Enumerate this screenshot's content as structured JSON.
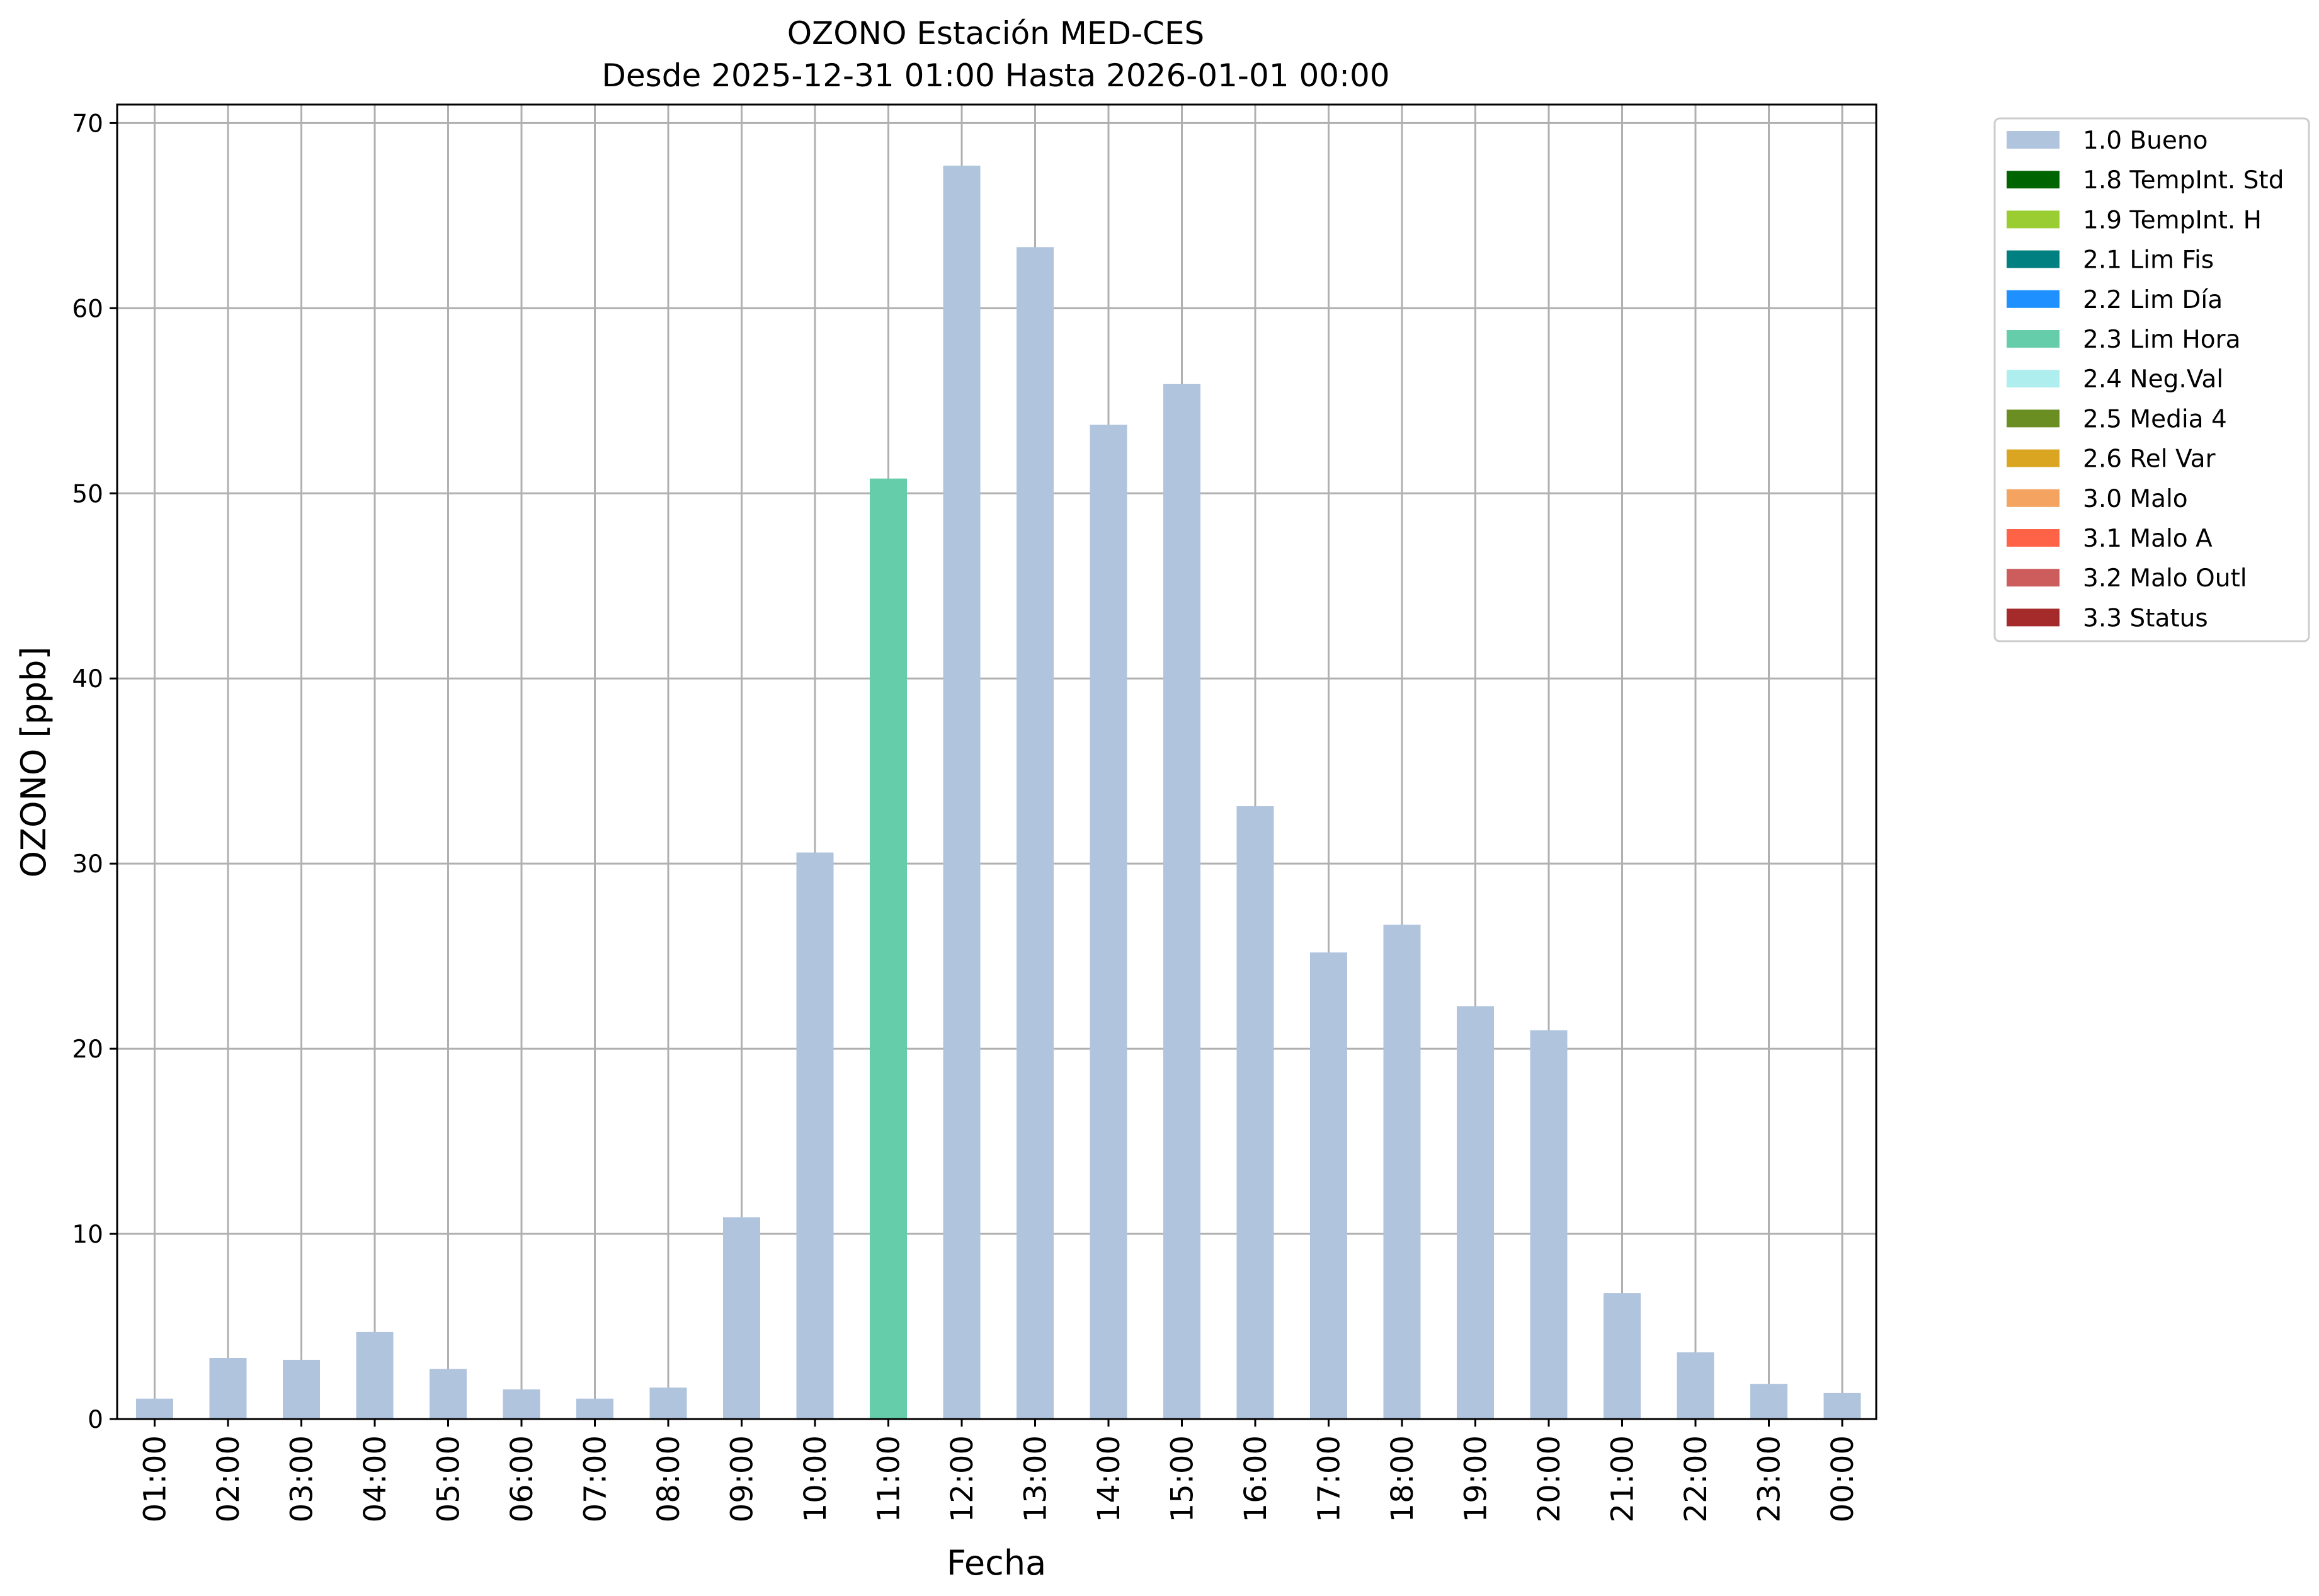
{
  "chart_data": {
    "type": "bar",
    "title": "OZONO Estación MED-CES",
    "subtitle": "Desde 2025-12-31 01:00 Hasta 2026-01-01 00:00",
    "xlabel": "Fecha",
    "ylabel": "OZONO [ppb]",
    "ylim": [
      0,
      71
    ],
    "yticks": [
      0,
      10,
      20,
      30,
      40,
      50,
      60,
      70
    ],
    "grid": true,
    "legend_position": "outside-top-right",
    "categories": [
      "01:00",
      "02:00",
      "03:00",
      "04:00",
      "05:00",
      "06:00",
      "07:00",
      "08:00",
      "09:00",
      "10:00",
      "11:00",
      "12:00",
      "13:00",
      "14:00",
      "15:00",
      "16:00",
      "17:00",
      "18:00",
      "19:00",
      "20:00",
      "21:00",
      "22:00",
      "23:00",
      "00:00"
    ],
    "values": [
      1.1,
      3.3,
      3.2,
      4.7,
      2.7,
      1.6,
      1.1,
      1.7,
      10.9,
      30.6,
      50.8,
      67.7,
      63.3,
      53.7,
      55.9,
      33.1,
      25.2,
      26.7,
      22.3,
      21.0,
      6.8,
      3.6,
      1.9,
      1.4
    ],
    "flags": [
      "1.0 Bueno",
      "1.0 Bueno",
      "1.0 Bueno",
      "1.0 Bueno",
      "1.0 Bueno",
      "1.0 Bueno",
      "1.0 Bueno",
      "1.0 Bueno",
      "1.0 Bueno",
      "1.0 Bueno",
      "2.3 Lim Hora",
      "1.0 Bueno",
      "1.0 Bueno",
      "1.0 Bueno",
      "1.0 Bueno",
      "1.0 Bueno",
      "1.0 Bueno",
      "1.0 Bueno",
      "1.0 Bueno",
      "1.0 Bueno",
      "1.0 Bueno",
      "1.0 Bueno",
      "1.0 Bueno",
      "1.0 Bueno"
    ],
    "legend": [
      {
        "name": "1.0 Bueno",
        "color": "#b0c4de"
      },
      {
        "name": "1.8 TempInt. Std",
        "color": "#006400"
      },
      {
        "name": "1.9 TempInt. H",
        "color": "#9acd32"
      },
      {
        "name": "2.1 Lim Fis",
        "color": "#008080"
      },
      {
        "name": "2.2 Lim Día",
        "color": "#1e90ff"
      },
      {
        "name": "2.3 Lim Hora",
        "color": "#66cdaa"
      },
      {
        "name": "2.4 Neg.Val",
        "color": "#afeeee"
      },
      {
        "name": "2.5 Media 4",
        "color": "#6b8e23"
      },
      {
        "name": "2.6 Rel Var",
        "color": "#daa520"
      },
      {
        "name": "3.0 Malo",
        "color": "#f4a460"
      },
      {
        "name": "3.1 Malo A",
        "color": "#ff6347"
      },
      {
        "name": "3.2 Malo Outl",
        "color": "#cd5c5c"
      },
      {
        "name": "3.3 Status",
        "color": "#a52a2a"
      }
    ]
  }
}
